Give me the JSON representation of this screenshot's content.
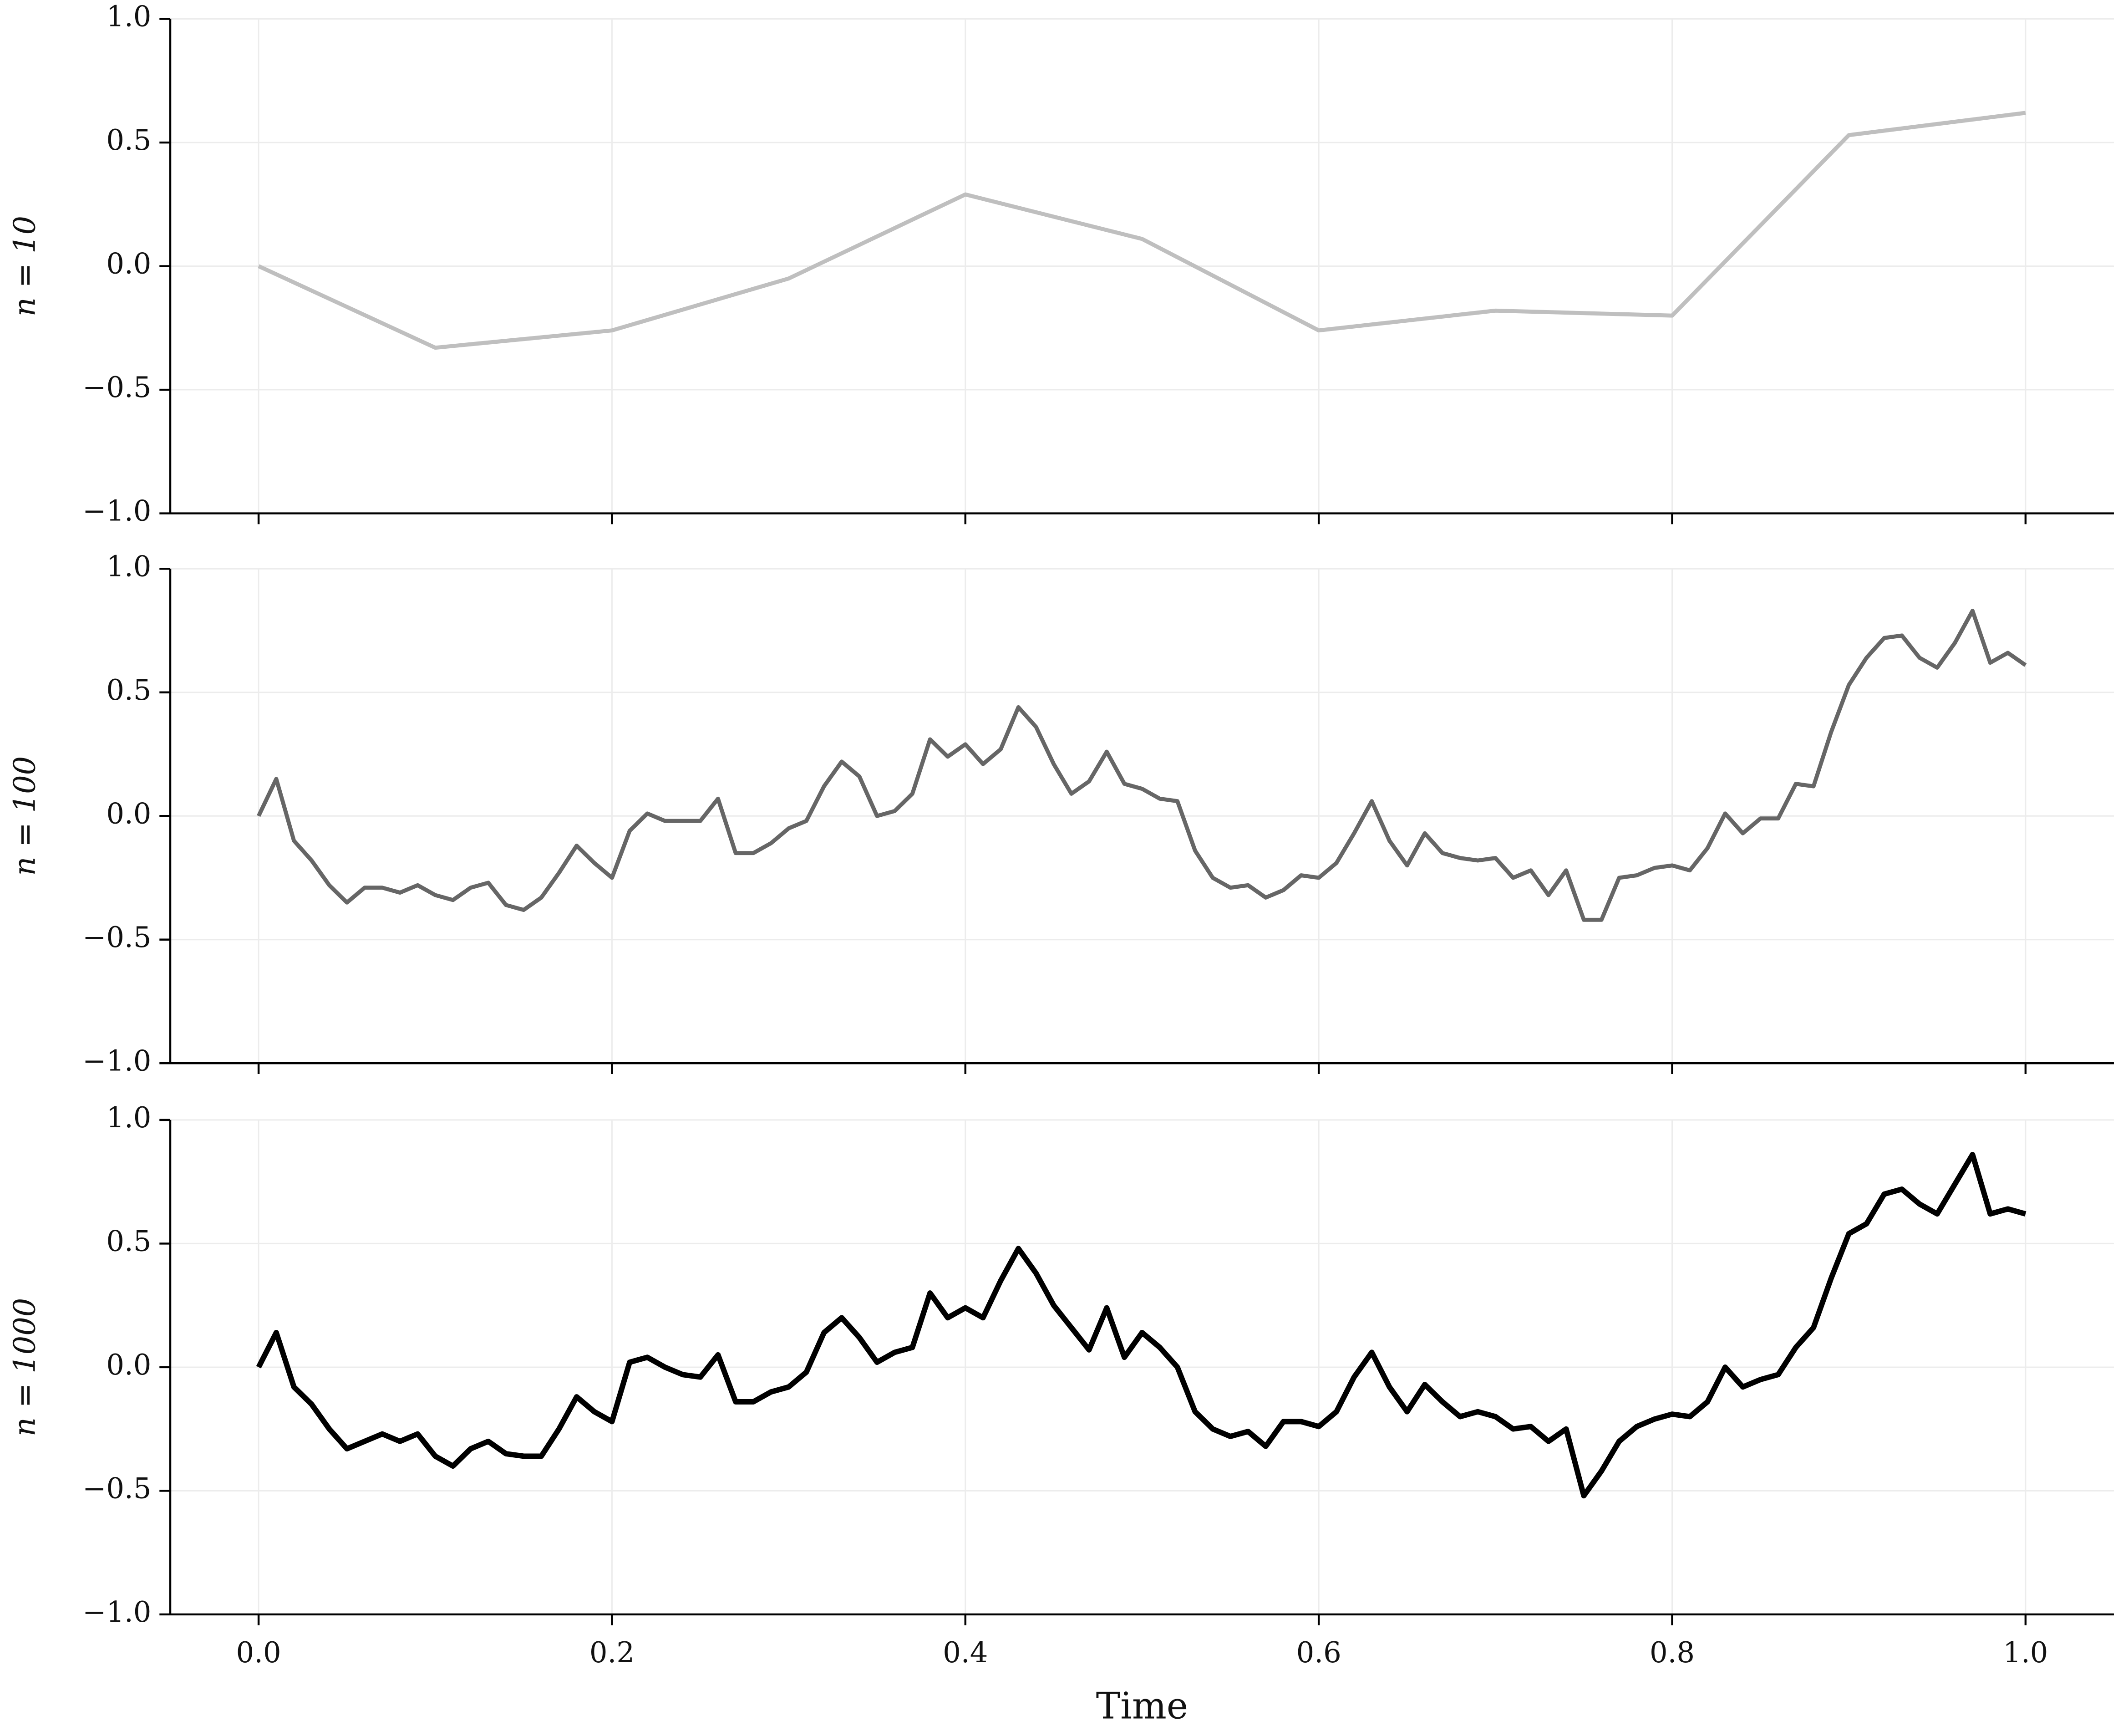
{
  "chart_data": [
    {
      "type": "line",
      "ylabel": "n = 10",
      "color": "#bfbfbf",
      "linewidth": 3,
      "x": [
        0,
        0.1,
        0.2,
        0.3,
        0.4,
        0.5,
        0.6,
        0.7,
        0.8,
        0.9,
        1
      ],
      "values": [
        0,
        -0.33,
        -0.26,
        -0.05,
        0.29,
        0.11,
        -0.26,
        -0.18,
        -0.2,
        0.53,
        0.62
      ],
      "ylim": [
        -1,
        1
      ],
      "yticks": [
        {
          "value": -1,
          "label": "−1.0"
        },
        {
          "value": -0.5,
          "label": "−0.5"
        },
        {
          "value": 0,
          "label": "0.0"
        },
        {
          "value": 0.5,
          "label": "0.5"
        },
        {
          "value": 1,
          "label": "1.0"
        }
      ],
      "grid": true
    },
    {
      "type": "line",
      "ylabel": "n = 100",
      "color": "#666666",
      "linewidth": 3,
      "x": [
        0,
        0.01,
        0.02,
        0.03,
        0.04,
        0.05,
        0.06,
        0.07,
        0.08,
        0.09,
        0.1,
        0.11,
        0.12,
        0.13,
        0.14,
        0.15,
        0.16,
        0.17,
        0.18,
        0.19,
        0.2,
        0.21,
        0.22,
        0.23,
        0.24,
        0.25,
        0.26,
        0.27,
        0.28,
        0.29,
        0.3,
        0.31,
        0.32,
        0.33,
        0.34,
        0.35,
        0.36,
        0.37,
        0.38,
        0.39,
        0.4,
        0.41,
        0.42,
        0.43,
        0.44,
        0.45,
        0.46,
        0.47,
        0.48,
        0.49,
        0.5,
        0.51,
        0.52,
        0.53,
        0.54,
        0.55,
        0.56,
        0.57,
        0.58,
        0.59,
        0.6,
        0.61,
        0.62,
        0.63,
        0.64,
        0.65,
        0.66,
        0.67,
        0.68,
        0.69,
        0.7,
        0.71,
        0.72,
        0.73,
        0.74,
        0.75,
        0.76,
        0.77,
        0.78,
        0.79,
        0.8,
        0.81,
        0.82,
        0.83,
        0.84,
        0.85,
        0.86,
        0.87,
        0.88,
        0.89,
        0.9,
        0.91,
        0.92,
        0.93,
        0.94,
        0.95,
        0.96,
        0.97,
        0.98,
        0.99,
        1
      ],
      "values": [
        0,
        0.15,
        -0.1,
        -0.18,
        -0.28,
        -0.35,
        -0.29,
        -0.29,
        -0.31,
        -0.28,
        -0.32,
        -0.34,
        -0.29,
        -0.27,
        -0.36,
        -0.38,
        -0.33,
        -0.23,
        -0.12,
        -0.19,
        -0.25,
        -0.06,
        0.01,
        -0.02,
        -0.02,
        -0.02,
        0.07,
        -0.15,
        -0.15,
        -0.11,
        -0.05,
        -0.02,
        0.12,
        0.22,
        0.16,
        0,
        0.02,
        0.09,
        0.31,
        0.24,
        0.29,
        0.21,
        0.27,
        0.44,
        0.36,
        0.21,
        0.09,
        0.14,
        0.26,
        0.13,
        0.11,
        0.07,
        0.06,
        -0.14,
        -0.25,
        -0.29,
        -0.28,
        -0.33,
        -0.3,
        -0.24,
        -0.25,
        -0.19,
        -0.07,
        0.06,
        -0.1,
        -0.2,
        -0.07,
        -0.15,
        -0.17,
        -0.18,
        -0.17,
        -0.25,
        -0.22,
        -0.32,
        -0.22,
        -0.42,
        -0.42,
        -0.25,
        -0.24,
        -0.21,
        -0.2,
        -0.22,
        -0.13,
        0.01,
        -0.07,
        -0.01,
        -0.01,
        0.13,
        0.12,
        0.34,
        0.53,
        0.64,
        0.72,
        0.73,
        0.64,
        0.6,
        0.7,
        0.83,
        0.62,
        0.66,
        0.61
      ],
      "ylim": [
        -1,
        1
      ],
      "yticks": [
        {
          "value": -1,
          "label": "−1.0"
        },
        {
          "value": -0.5,
          "label": "−0.5"
        },
        {
          "value": 0,
          "label": "0.0"
        },
        {
          "value": 0.5,
          "label": "0.5"
        },
        {
          "value": 1,
          "label": "1.0"
        }
      ],
      "grid": true
    },
    {
      "type": "line",
      "ylabel": "n = 1000",
      "xlabel": "Time",
      "color": "#000000",
      "linewidth": 4,
      "x": [
        0,
        0.01,
        0.02,
        0.03,
        0.04,
        0.05,
        0.06,
        0.07,
        0.08,
        0.09,
        0.1,
        0.11,
        0.12,
        0.13,
        0.14,
        0.15,
        0.16,
        0.17,
        0.18,
        0.19,
        0.2,
        0.21,
        0.22,
        0.23,
        0.24,
        0.25,
        0.26,
        0.27,
        0.28,
        0.29,
        0.3,
        0.31,
        0.32,
        0.33,
        0.34,
        0.35,
        0.36,
        0.37,
        0.38,
        0.39,
        0.4,
        0.41,
        0.42,
        0.43,
        0.44,
        0.45,
        0.46,
        0.47,
        0.48,
        0.49,
        0.5,
        0.51,
        0.52,
        0.53,
        0.54,
        0.55,
        0.56,
        0.57,
        0.58,
        0.59,
        0.6,
        0.61,
        0.62,
        0.63,
        0.64,
        0.65,
        0.66,
        0.67,
        0.68,
        0.69,
        0.7,
        0.71,
        0.72,
        0.73,
        0.74,
        0.75,
        0.76,
        0.77,
        0.78,
        0.79,
        0.8,
        0.81,
        0.82,
        0.83,
        0.84,
        0.85,
        0.86,
        0.87,
        0.88,
        0.89,
        0.9,
        0.91,
        0.92,
        0.93,
        0.94,
        0.95,
        0.96,
        0.97,
        0.98,
        0.99,
        1
      ],
      "values": [
        0,
        0.14,
        -0.08,
        -0.15,
        -0.25,
        -0.33,
        -0.3,
        -0.27,
        -0.3,
        -0.27,
        -0.36,
        -0.4,
        -0.33,
        -0.3,
        -0.35,
        -0.36,
        -0.36,
        -0.25,
        -0.12,
        -0.18,
        -0.22,
        0.02,
        0.04,
        0,
        -0.03,
        -0.04,
        0.05,
        -0.14,
        -0.14,
        -0.1,
        -0.08,
        -0.02,
        0.14,
        0.2,
        0.12,
        0.02,
        0.06,
        0.08,
        0.3,
        0.2,
        0.24,
        0.2,
        0.35,
        0.48,
        0.38,
        0.25,
        0.16,
        0.07,
        0.24,
        0.04,
        0.14,
        0.08,
        0,
        -0.18,
        -0.25,
        -0.28,
        -0.26,
        -0.32,
        -0.22,
        -0.22,
        -0.24,
        -0.18,
        -0.04,
        0.06,
        -0.08,
        -0.18,
        -0.07,
        -0.14,
        -0.2,
        -0.18,
        -0.2,
        -0.25,
        -0.24,
        -0.3,
        -0.25,
        -0.52,
        -0.42,
        -0.3,
        -0.24,
        -0.21,
        -0.19,
        -0.2,
        -0.14,
        0,
        -0.08,
        -0.05,
        -0.03,
        0.08,
        0.16,
        0.36,
        0.54,
        0.58,
        0.7,
        0.72,
        0.66,
        0.62,
        0.74,
        0.86,
        0.62,
        0.64,
        0.62
      ],
      "ylim": [
        -1,
        1
      ],
      "yticks": [
        {
          "value": -1,
          "label": "−1.0"
        },
        {
          "value": -0.5,
          "label": "−0.5"
        },
        {
          "value": 0,
          "label": "0.0"
        },
        {
          "value": 0.5,
          "label": "0.5"
        },
        {
          "value": 1,
          "label": "1.0"
        }
      ],
      "xlim": [
        -0.05,
        1.05
      ],
      "xticks": [
        {
          "value": 0,
          "label": "0.0"
        },
        0.2,
        0.4,
        0.6,
        0.8,
        {
          "value": 1,
          "label": "1.0"
        }
      ],
      "grid": true
    }
  ]
}
